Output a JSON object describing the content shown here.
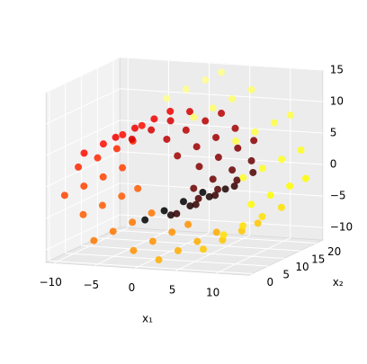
{
  "chart_data": {
    "type": "scatter3d",
    "xlabel": "x₁",
    "ylabel": "x₂",
    "colormap": "hot",
    "grid": true,
    "xlim": [
      -11,
      14
    ],
    "ylim": [
      -1,
      22
    ],
    "zlim": [
      -12,
      15
    ],
    "xticks": [
      {
        "value": -10,
        "label": "−10"
      },
      {
        "value": -5,
        "label": "−5"
      },
      0,
      5,
      10
    ],
    "yticks": [
      0,
      5,
      10,
      15,
      20
    ],
    "zticks": [
      {
        "value": -10,
        "label": "−10"
      },
      {
        "value": -5,
        "label": "−5"
      },
      0,
      5,
      10,
      15
    ],
    "points": {
      "x": [
        0.4,
        0.4,
        0.4,
        0.4,
        2.4,
        2.4,
        2.4,
        2.4,
        4.3,
        4.3,
        4.3,
        4.3,
        5.8,
        5.8,
        5.8,
        5.8,
        6.4,
        6.4,
        6.4,
        6.4,
        5.9,
        5.9,
        5.9,
        5.9,
        4.4,
        4.4,
        4.4,
        4.4,
        1.9,
        1.9,
        1.9,
        1.9,
        -1.2,
        -1.2,
        -1.2,
        -1.2,
        -4.4,
        -4.4,
        -4.4,
        -4.4,
        -7.1,
        -7.1,
        -7.1,
        -7.1,
        -9.0,
        -9.0,
        -9.0,
        -9.0,
        -9.5,
        -9.5,
        -9.5,
        -9.5,
        -8.4,
        -8.4,
        -8.4,
        -8.4,
        -5.9,
        -5.9,
        -5.9,
        -5.9,
        -2.2,
        -2.2,
        -2.2,
        -2.2,
        2.1,
        2.1,
        2.1,
        2.1,
        6.4,
        6.4,
        6.4,
        6.4,
        10.1,
        10.1,
        10.1,
        10.1,
        12.3,
        12.3,
        12.3,
        12.3,
        12.5,
        12.5,
        12.5,
        12.5,
        10.4,
        10.4,
        10.4,
        10.4,
        6.4,
        6.4,
        6.4,
        6.4,
        1.9,
        1.9,
        1.9,
        1.9
      ],
      "y": [
        1,
        7,
        13,
        19,
        4,
        10,
        16,
        21,
        1,
        7,
        13,
        19,
        4,
        10,
        16,
        21,
        1,
        7,
        13,
        19,
        4,
        10,
        16,
        21,
        1,
        7,
        13,
        19,
        4,
        10,
        16,
        21,
        1,
        7,
        13,
        19,
        4,
        10,
        16,
        21,
        1,
        7,
        13,
        19,
        4,
        10,
        16,
        21,
        1,
        7,
        13,
        19,
        4,
        10,
        16,
        21,
        1,
        7,
        13,
        19,
        4,
        10,
        16,
        21,
        1,
        7,
        13,
        19,
        4,
        10,
        16,
        21,
        1,
        7,
        13,
        19,
        4,
        10,
        16,
        21,
        1,
        7,
        13,
        19,
        4,
        10,
        16,
        21,
        1,
        7,
        13,
        19,
        4,
        10,
        16,
        21
      ],
      "z": [
        -4.8,
        -4.8,
        -4.8,
        -4.8,
        -4.6,
        -4.6,
        -4.6,
        -4.6,
        -3.5,
        -3.5,
        -3.5,
        -3.5,
        -1.7,
        -1.7,
        -1.7,
        -1.7,
        0.7,
        0.7,
        0.7,
        0.7,
        3.4,
        3.4,
        3.4,
        3.4,
        5.7,
        5.7,
        5.7,
        5.7,
        7.4,
        7.4,
        7.4,
        7.4,
        7.9,
        7.9,
        7.9,
        7.9,
        7.2,
        7.2,
        7.2,
        7.2,
        5.2,
        5.2,
        5.2,
        5.2,
        2.1,
        2.1,
        2.1,
        2.1,
        -1.7,
        -1.7,
        -1.7,
        -1.7,
        -5.4,
        -5.4,
        -5.4,
        -5.4,
        -8.6,
        -8.6,
        -8.6,
        -8.6,
        -10.6,
        -10.6,
        -10.6,
        -10.6,
        -11.0,
        -11.0,
        -11.0,
        -11.0,
        -9.7,
        -9.7,
        -9.7,
        -9.7,
        -6.4,
        -6.4,
        -6.4,
        -6.4,
        -2.1,
        -2.1,
        -2.1,
        -2.1,
        2.9,
        2.9,
        2.9,
        2.9,
        7.8,
        7.8,
        7.8,
        7.8,
        12.0,
        12.0,
        12.0,
        12.0,
        13.9,
        13.9,
        13.9,
        13.9
      ],
      "c": [
        4.8,
        4.8,
        4.8,
        4.8,
        5.2,
        5.2,
        5.2,
        5.2,
        5.6,
        5.6,
        5.6,
        5.6,
        6.0,
        6.0,
        6.0,
        6.0,
        6.4,
        6.4,
        6.4,
        6.4,
        6.8,
        6.8,
        6.8,
        6.8,
        7.2,
        7.2,
        7.2,
        7.2,
        7.6,
        7.6,
        7.6,
        7.6,
        8.0,
        8.0,
        8.0,
        8.0,
        8.4,
        8.4,
        8.4,
        8.4,
        8.8,
        8.8,
        8.8,
        8.8,
        9.2,
        9.2,
        9.2,
        9.2,
        9.6,
        9.6,
        9.6,
        9.6,
        10.0,
        10.0,
        10.0,
        10.0,
        10.4,
        10.4,
        10.4,
        10.4,
        10.8,
        10.8,
        10.8,
        10.8,
        11.2,
        11.2,
        11.2,
        11.2,
        11.6,
        11.6,
        11.6,
        11.6,
        12.0,
        12.0,
        12.0,
        12.0,
        12.4,
        12.4,
        12.4,
        12.4,
        12.8,
        12.8,
        12.8,
        12.8,
        13.2,
        13.2,
        13.2,
        13.2,
        13.6,
        13.6,
        13.6,
        13.6,
        14.0,
        14.0,
        14.0,
        14.0
      ]
    }
  }
}
